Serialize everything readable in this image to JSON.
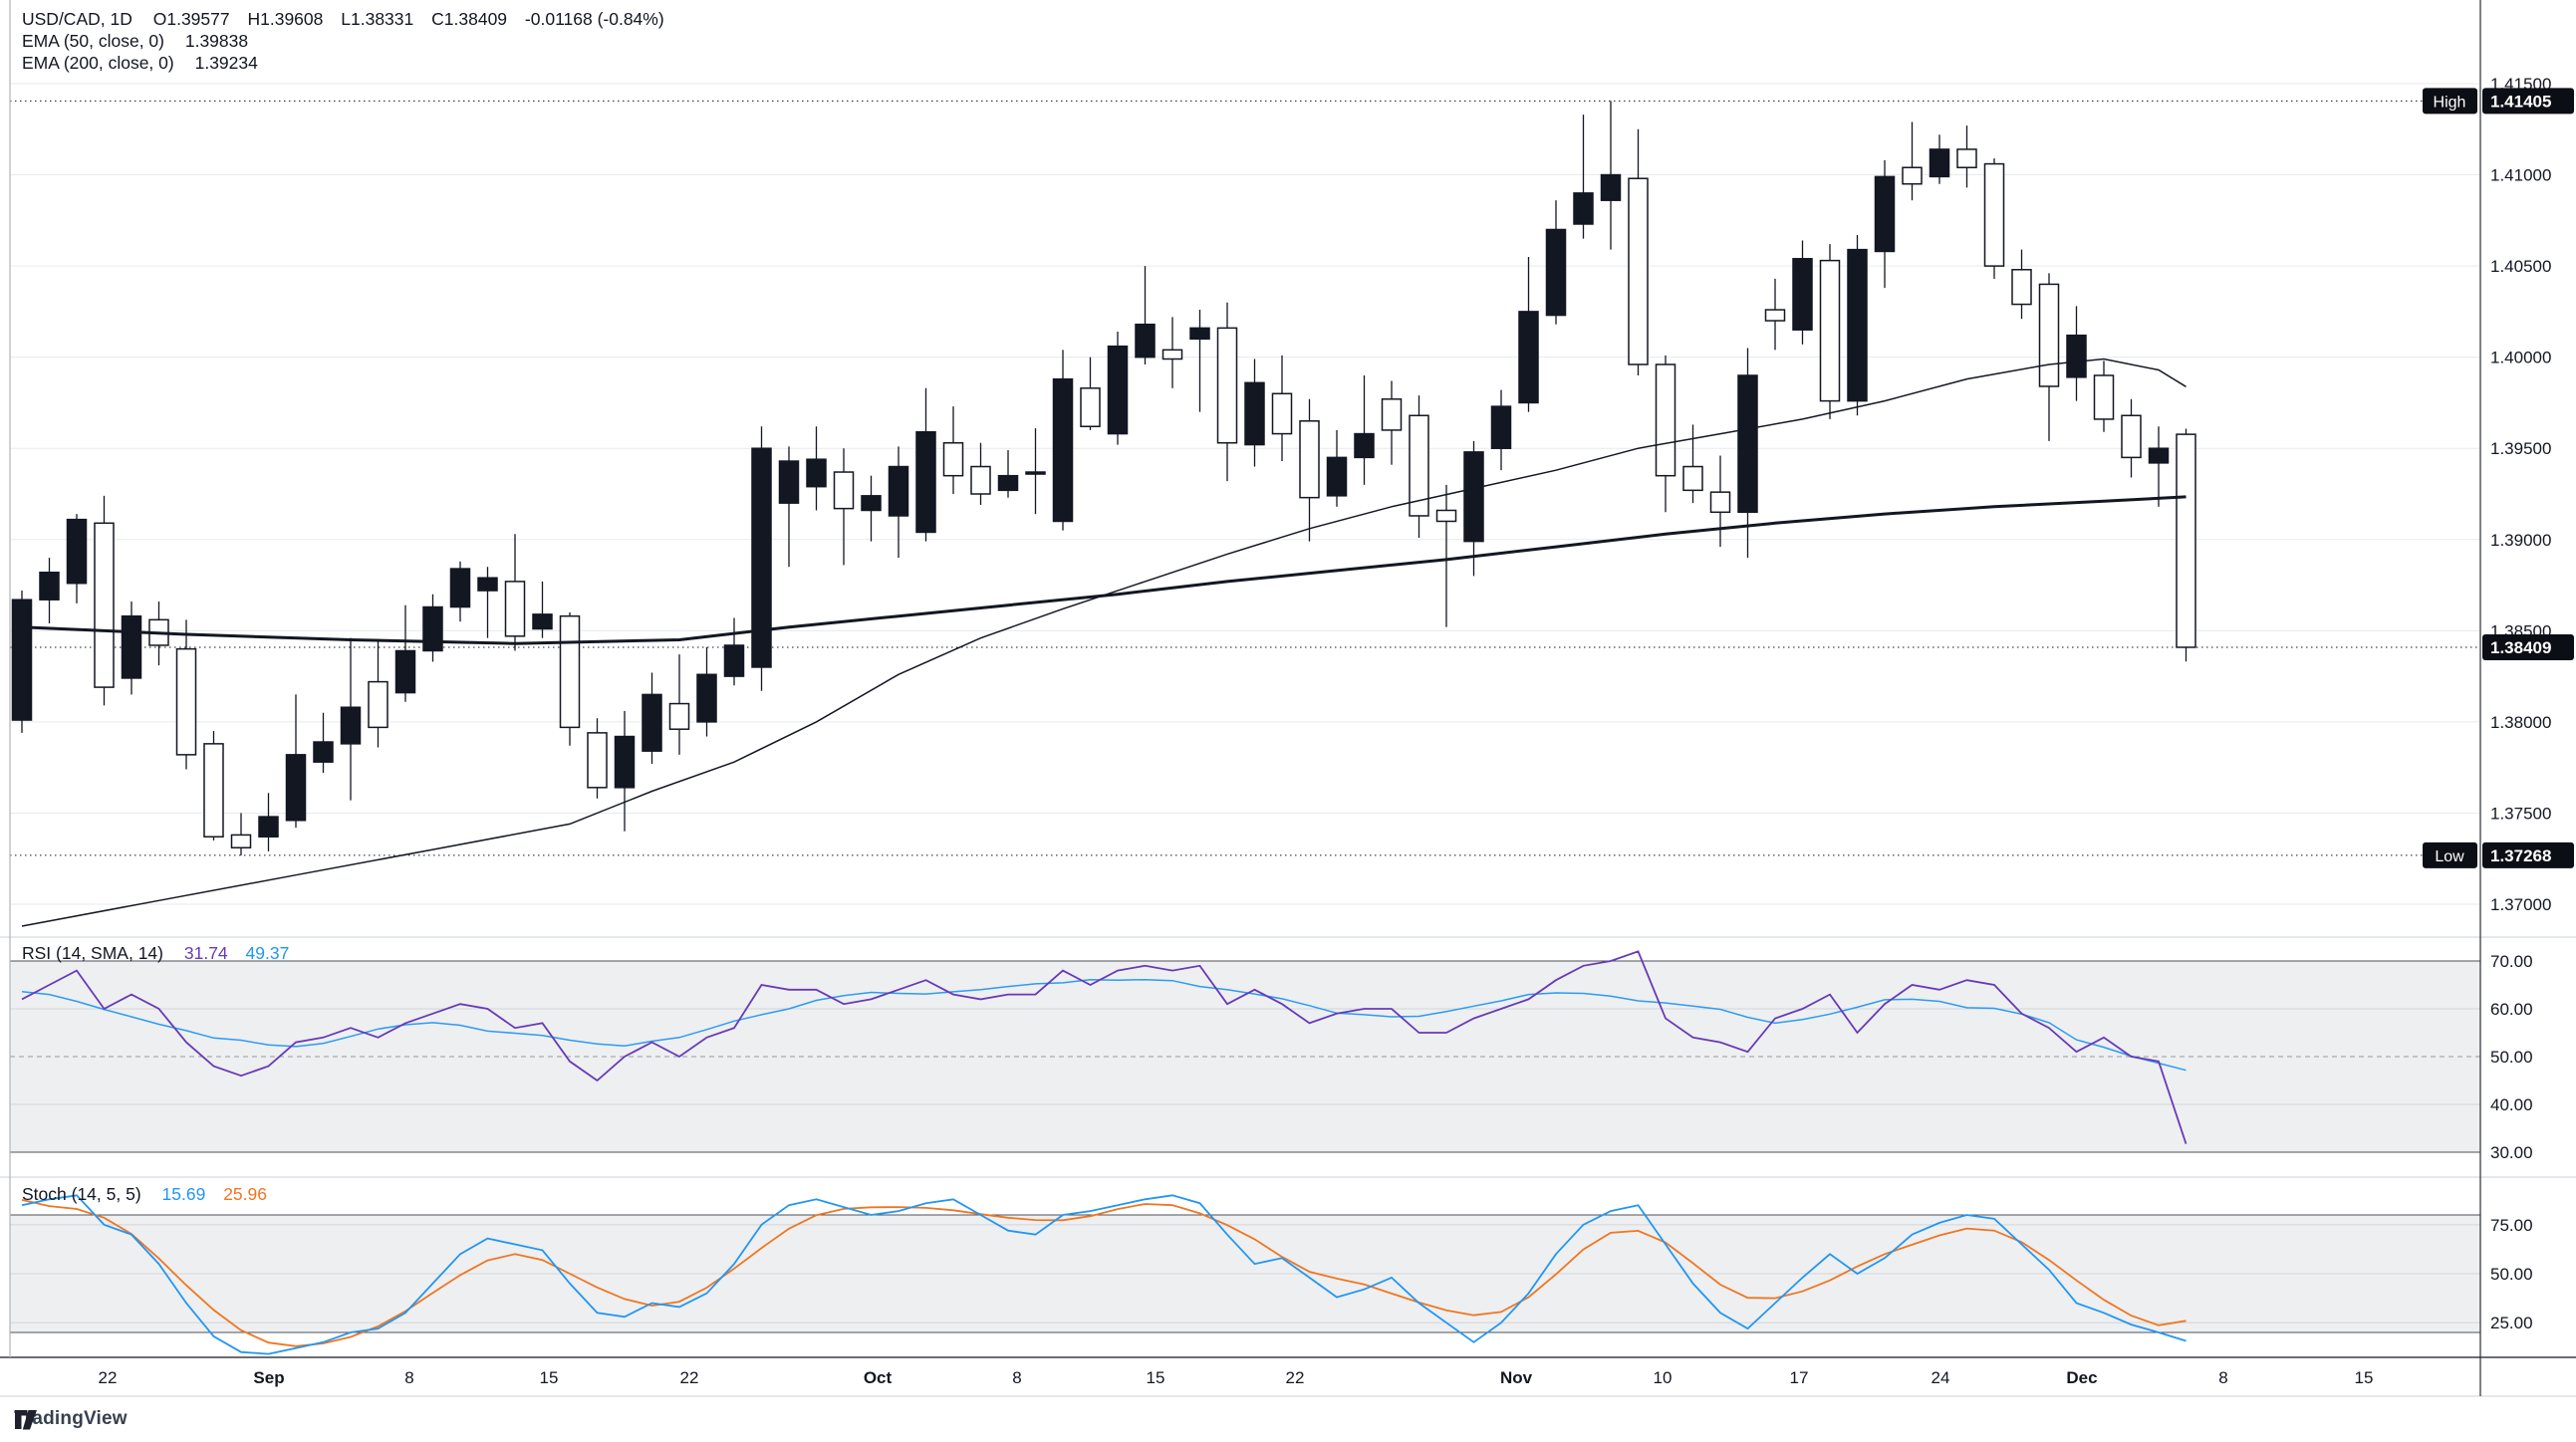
{
  "legend": {
    "title": "USD/CAD, 1D",
    "o": "O1.39577",
    "h": "H1.39608",
    "l": "L1.38331",
    "c": "C1.38409",
    "chg": "-0.01168 (-0.84%)",
    "ema50_label": "EMA (50, close, 0)",
    "ema50_value": "1.39838",
    "ema200_label": "EMA (200, close, 0)",
    "ema200_value": "1.39234"
  },
  "rsi_legend": {
    "label": "RSI (14, SMA, 14)",
    "v1": "31.74",
    "v2": "49.37"
  },
  "stoch_legend": {
    "label": "Stoch (14, 5, 5)",
    "v1": "15.69",
    "v2": "25.96"
  },
  "badges": {
    "high_label": "High",
    "high": "1.41405",
    "low_label": "Low",
    "low": "1.37268",
    "last": "1.38409"
  },
  "watermark": "TradingView",
  "chart_data": {
    "type": "candlestick",
    "title": "USD/CAD, 1D",
    "ylim": [
      1.3682,
      1.4196
    ],
    "grid": true,
    "price_ticks": [
      1.415,
      1.41,
      1.405,
      1.4,
      1.395,
      1.39,
      1.385,
      1.38,
      1.375,
      1.37
    ],
    "high_line": 1.41405,
    "low_line": 1.37268,
    "last_price": 1.38409,
    "candles": [
      [
        1.3801,
        1.3872,
        1.3794,
        1.3867
      ],
      [
        1.3867,
        1.389,
        1.3854,
        1.3882
      ],
      [
        1.3876,
        1.3914,
        1.3865,
        1.3911
      ],
      [
        1.3909,
        1.3924,
        1.3809,
        1.3819
      ],
      [
        1.3824,
        1.3866,
        1.3815,
        1.3858
      ],
      [
        1.3856,
        1.3866,
        1.3831,
        1.3842
      ],
      [
        1.384,
        1.3856,
        1.3774,
        1.3782
      ],
      [
        1.3788,
        1.3795,
        1.3735,
        1.3737
      ],
      [
        1.3738,
        1.375,
        1.37268,
        1.3731
      ],
      [
        1.3737,
        1.3761,
        1.3729,
        1.3748
      ],
      [
        1.3746,
        1.3815,
        1.3742,
        1.3782
      ],
      [
        1.3778,
        1.3805,
        1.3772,
        1.3789
      ],
      [
        1.3788,
        1.3846,
        1.3757,
        1.3808
      ],
      [
        1.3822,
        1.3845,
        1.3786,
        1.3797
      ],
      [
        1.3816,
        1.3864,
        1.3811,
        1.3839
      ],
      [
        1.3839,
        1.387,
        1.3833,
        1.3863
      ],
      [
        1.3863,
        1.3888,
        1.3855,
        1.3884
      ],
      [
        1.3872,
        1.3885,
        1.3846,
        1.3879
      ],
      [
        1.3877,
        1.3903,
        1.3839,
        1.3847
      ],
      [
        1.3851,
        1.3877,
        1.3846,
        1.3859
      ],
      [
        1.3858,
        1.386,
        1.3787,
        1.3797
      ],
      [
        1.3794,
        1.3802,
        1.3758,
        1.3764
      ],
      [
        1.3764,
        1.3806,
        1.374,
        1.3792
      ],
      [
        1.3784,
        1.3827,
        1.3777,
        1.3815
      ],
      [
        1.381,
        1.3837,
        1.3782,
        1.3796
      ],
      [
        1.38,
        1.3841,
        1.3792,
        1.3826
      ],
      [
        1.3825,
        1.3857,
        1.382,
        1.3842
      ],
      [
        1.383,
        1.3962,
        1.3817,
        1.395
      ],
      [
        1.392,
        1.3951,
        1.3885,
        1.3943
      ],
      [
        1.3929,
        1.3962,
        1.3916,
        1.3944
      ],
      [
        1.3937,
        1.395,
        1.3886,
        1.3917
      ],
      [
        1.3916,
        1.3935,
        1.3899,
        1.3924
      ],
      [
        1.3913,
        1.3951,
        1.389,
        1.394
      ],
      [
        1.3904,
        1.3983,
        1.3899,
        1.3959
      ],
      [
        1.3953,
        1.3973,
        1.3925,
        1.3935
      ],
      [
        1.394,
        1.3953,
        1.3919,
        1.3925
      ],
      [
        1.3927,
        1.3949,
        1.3923,
        1.3935
      ],
      [
        1.3936,
        1.3961,
        1.3914,
        1.3937
      ],
      [
        1.391,
        1.4004,
        1.3905,
        1.3988
      ],
      [
        1.3983,
        1.4,
        1.396,
        1.3962
      ],
      [
        1.3958,
        1.4014,
        1.3952,
        1.4006
      ],
      [
        1.4,
        1.405,
        1.3996,
        1.4018
      ],
      [
        1.4004,
        1.4022,
        1.3983,
        1.3999
      ],
      [
        1.401,
        1.4026,
        1.397,
        1.4016
      ],
      [
        1.4016,
        1.403,
        1.3932,
        1.3953
      ],
      [
        1.3952,
        1.3999,
        1.394,
        1.3986
      ],
      [
        1.398,
        1.4001,
        1.3943,
        1.3958
      ],
      [
        1.3965,
        1.3977,
        1.3899,
        1.3923
      ],
      [
        1.3924,
        1.396,
        1.3918,
        1.3945
      ],
      [
        1.3945,
        1.399,
        1.393,
        1.3958
      ],
      [
        1.3977,
        1.3987,
        1.3941,
        1.396
      ],
      [
        1.3968,
        1.3979,
        1.3901,
        1.3913
      ],
      [
        1.3916,
        1.393,
        1.3852,
        1.391
      ],
      [
        1.3899,
        1.3954,
        1.388,
        1.3948
      ],
      [
        1.395,
        1.3982,
        1.3938,
        1.3973
      ],
      [
        1.3975,
        1.4055,
        1.397,
        1.4025
      ],
      [
        1.4023,
        1.4086,
        1.4018,
        1.407
      ],
      [
        1.4073,
        1.4133,
        1.4065,
        1.409
      ],
      [
        1.4086,
        1.41405,
        1.4059,
        1.41
      ],
      [
        1.4098,
        1.4125,
        1.399,
        1.3996
      ],
      [
        1.3996,
        1.4001,
        1.3915,
        1.3935
      ],
      [
        1.394,
        1.3963,
        1.392,
        1.3927
      ],
      [
        1.3926,
        1.3946,
        1.3896,
        1.3915
      ],
      [
        1.3915,
        1.4005,
        1.389,
        1.399
      ],
      [
        1.4026,
        1.4043,
        1.4004,
        1.402
      ],
      [
        1.4015,
        1.4064,
        1.4007,
        1.4054
      ],
      [
        1.4053,
        1.4062,
        1.3966,
        1.3976
      ],
      [
        1.3976,
        1.4067,
        1.3968,
        1.4059
      ],
      [
        1.4058,
        1.4108,
        1.4038,
        1.4099
      ],
      [
        1.4104,
        1.4129,
        1.4086,
        1.4095
      ],
      [
        1.4099,
        1.4122,
        1.4095,
        1.4114
      ],
      [
        1.4114,
        1.4127,
        1.4093,
        1.4104
      ],
      [
        1.4106,
        1.4109,
        1.4043,
        1.405
      ],
      [
        1.4048,
        1.4059,
        1.4021,
        1.4029
      ],
      [
        1.404,
        1.4046,
        1.3954,
        1.3984
      ],
      [
        1.3989,
        1.4028,
        1.3976,
        1.4012
      ],
      [
        1.399,
        1.3998,
        1.3959,
        1.3966
      ],
      [
        1.3968,
        1.3977,
        1.3934,
        1.3945
      ],
      [
        1.3942,
        1.3962,
        1.3918,
        1.395
      ],
      [
        1.39577,
        1.39608,
        1.38331,
        1.38409
      ]
    ],
    "ema50": [
      [
        0,
        1.3688
      ],
      [
        5,
        1.3702
      ],
      [
        10,
        1.3716
      ],
      [
        15,
        1.373
      ],
      [
        20,
        1.3744
      ],
      [
        23,
        1.3762
      ],
      [
        26,
        1.3778
      ],
      [
        29,
        1.38
      ],
      [
        32,
        1.3826
      ],
      [
        35,
        1.3846
      ],
      [
        38,
        1.3862
      ],
      [
        41,
        1.3877
      ],
      [
        44,
        1.3892
      ],
      [
        47,
        1.3906
      ],
      [
        50,
        1.3918
      ],
      [
        53,
        1.3928
      ],
      [
        56,
        1.3938
      ],
      [
        59,
        1.395
      ],
      [
        62,
        1.3958
      ],
      [
        65,
        1.3966
      ],
      [
        68,
        1.3976
      ],
      [
        71,
        1.3988
      ],
      [
        74,
        1.3996
      ],
      [
        76,
        1.3999
      ],
      [
        78,
        1.3993
      ],
      [
        79,
        1.39838
      ]
    ],
    "ema200": [
      [
        0,
        1.3852
      ],
      [
        6,
        1.3848
      ],
      [
        12,
        1.3845
      ],
      [
        18,
        1.3843
      ],
      [
        24,
        1.3845
      ],
      [
        28,
        1.3852
      ],
      [
        32,
        1.3858
      ],
      [
        36,
        1.3864
      ],
      [
        40,
        1.387
      ],
      [
        44,
        1.3877
      ],
      [
        48,
        1.3883
      ],
      [
        52,
        1.3889
      ],
      [
        56,
        1.3896
      ],
      [
        60,
        1.3903
      ],
      [
        64,
        1.3909
      ],
      [
        68,
        1.3914
      ],
      [
        72,
        1.3918
      ],
      [
        76,
        1.3921
      ],
      [
        79,
        1.39234
      ]
    ],
    "rsi": {
      "ticks": [
        70,
        60,
        50,
        40,
        30
      ],
      "band": [
        30,
        70
      ],
      "mid": 50,
      "values": [
        62,
        65,
        68,
        60,
        63,
        60,
        53,
        48,
        46,
        48,
        53,
        54,
        56,
        54,
        57,
        59,
        61,
        60,
        56,
        57,
        49,
        45,
        50,
        53,
        50,
        54,
        56,
        65,
        64,
        64,
        61,
        62,
        64,
        66,
        63,
        62,
        63,
        63,
        68,
        65,
        68,
        69,
        68,
        69,
        61,
        64,
        61,
        57,
        59,
        60,
        60,
        55,
        55,
        58,
        60,
        62,
        66,
        69,
        70,
        72,
        58,
        54,
        53,
        51,
        58,
        60,
        63,
        55,
        61,
        65,
        64,
        66,
        65,
        59,
        56,
        51,
        54,
        50,
        49,
        31.74
      ]
    },
    "stoch": {
      "ticks": [
        75,
        50,
        25
      ],
      "band": [
        20,
        80
      ],
      "k": [
        85,
        88,
        90,
        75,
        70,
        55,
        35,
        18,
        10,
        9,
        12,
        15,
        20,
        22,
        30,
        45,
        60,
        68,
        65,
        62,
        45,
        30,
        28,
        35,
        33,
        40,
        55,
        75,
        85,
        88,
        84,
        80,
        82,
        86,
        88,
        80,
        72,
        70,
        80,
        82,
        85,
        88,
        90,
        86,
        70,
        55,
        58,
        48,
        38,
        42,
        48,
        35,
        25,
        15,
        25,
        40,
        60,
        75,
        82,
        85,
        65,
        45,
        30,
        22,
        35,
        48,
        60,
        50,
        58,
        70,
        76,
        80,
        78,
        65,
        52,
        35,
        30,
        24,
        20,
        15.69
      ]
    },
    "time_labels": [
      {
        "t": "22",
        "x": 108,
        "m": 0
      },
      {
        "t": "Sep",
        "x": 270,
        "m": 1
      },
      {
        "t": "8",
        "x": 411,
        "m": 0
      },
      {
        "t": "15",
        "x": 551,
        "m": 0
      },
      {
        "t": "22",
        "x": 692,
        "m": 0
      },
      {
        "t": "Oct",
        "x": 881,
        "m": 1
      },
      {
        "t": "8",
        "x": 1021,
        "m": 0
      },
      {
        "t": "15",
        "x": 1160,
        "m": 0
      },
      {
        "t": "22",
        "x": 1300,
        "m": 0
      },
      {
        "t": "Nov",
        "x": 1522,
        "m": 1
      },
      {
        "t": "10",
        "x": 1669,
        "m": 0
      },
      {
        "t": "17",
        "x": 1806,
        "m": 0
      },
      {
        "t": "24",
        "x": 1948,
        "m": 0
      },
      {
        "t": "Dec",
        "x": 2090,
        "m": 1
      },
      {
        "t": "8",
        "x": 2232,
        "m": 0
      },
      {
        "t": "15",
        "x": 2373,
        "m": 0
      }
    ],
    "colors": {
      "up": "#131722",
      "down_fill": "#ffffff",
      "outline": "#131722",
      "rsi": "#673ab7",
      "rsi_sma": "#2196f3",
      "stoch_k": "#2196f3",
      "stoch_d": "#ef7622",
      "grid": "#e8eaee",
      "band_fill": "rgba(125,128,140,0.13)",
      "band_edge": "#4d505b",
      "axis_text": "#131722",
      "badge_bg": "#0c0e15",
      "badge_text": "#ffffff"
    }
  }
}
